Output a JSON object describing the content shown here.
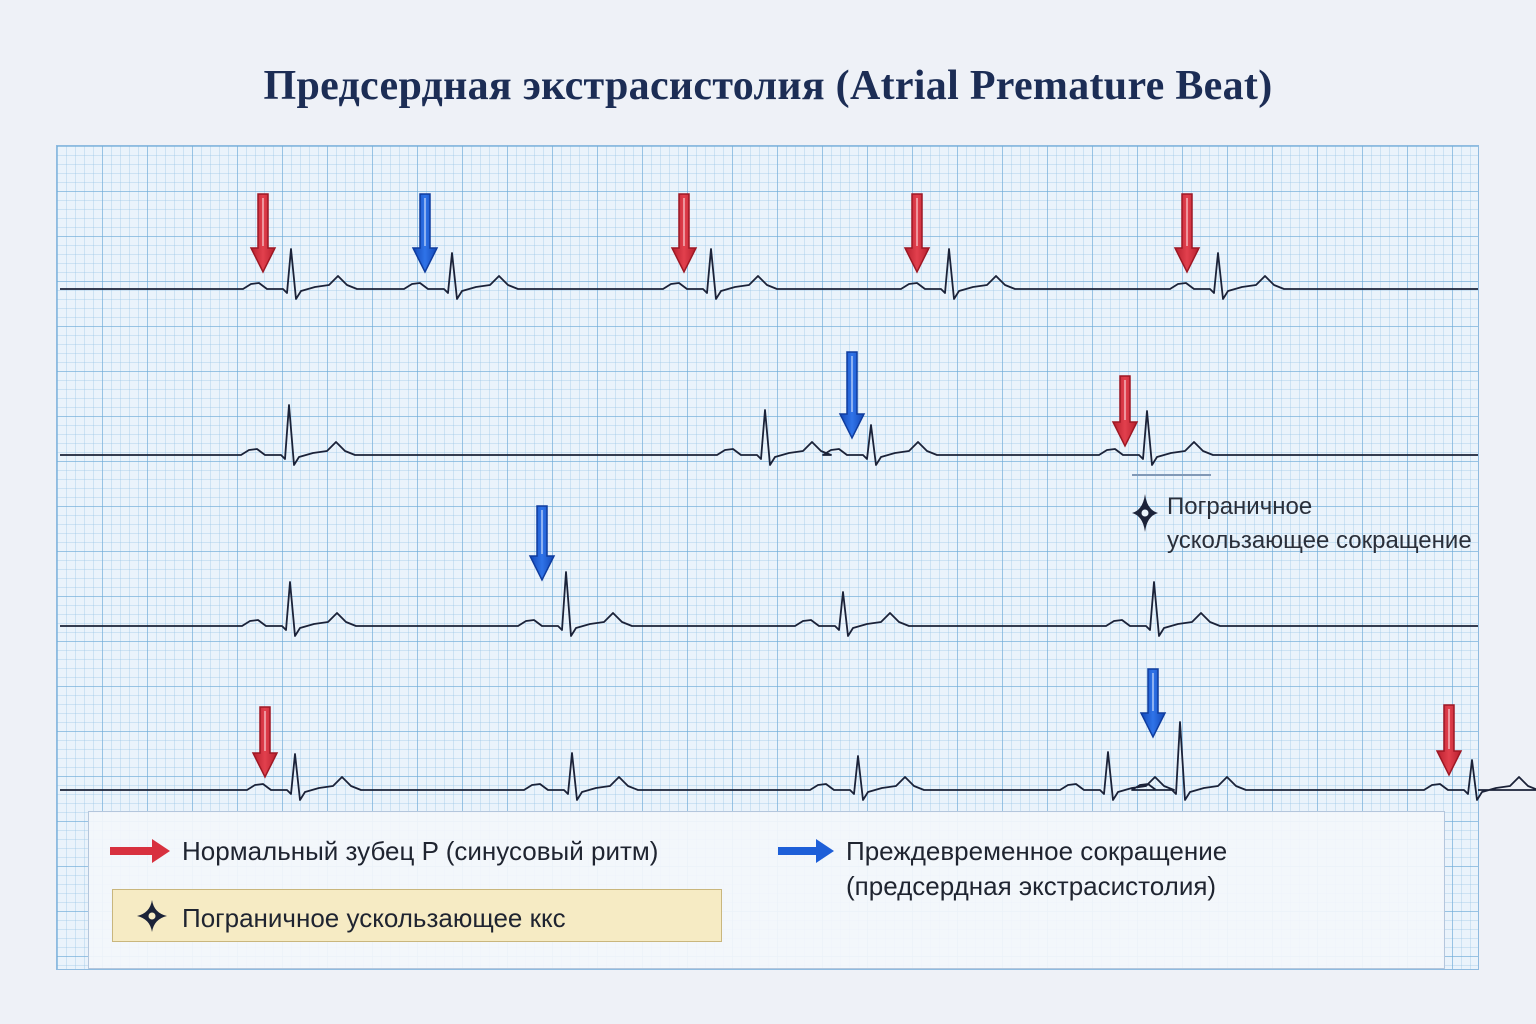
{
  "title": "Предсердная экстрасистолия (Atrial Premature Beat)",
  "colors": {
    "normal_arrow": "#d8313f",
    "premature_arrow": "#1e5fd8",
    "trace": "#1b2238",
    "grid": "#6eaad7",
    "paper": "#eaf3fb",
    "legend_highlight": "#f6ebc4",
    "title": "#1c2d55"
  },
  "annotation": {
    "icon": "four-point-star-icon",
    "line1": "Пограничное",
    "line2": "ускользающее сокращение"
  },
  "legend": {
    "normal_p": {
      "icon": "red-arrow-icon",
      "label": "Нормальный зубец P (синусовый ритм)"
    },
    "premature": {
      "icon": "blue-arrow-icon",
      "line1": "Преждевременное сокращение",
      "line2": "(предсердная экстрасистолия)"
    },
    "borderline": {
      "icon": "four-point-star-icon",
      "label": "Пограничное ускользающее ккс"
    }
  }
}
